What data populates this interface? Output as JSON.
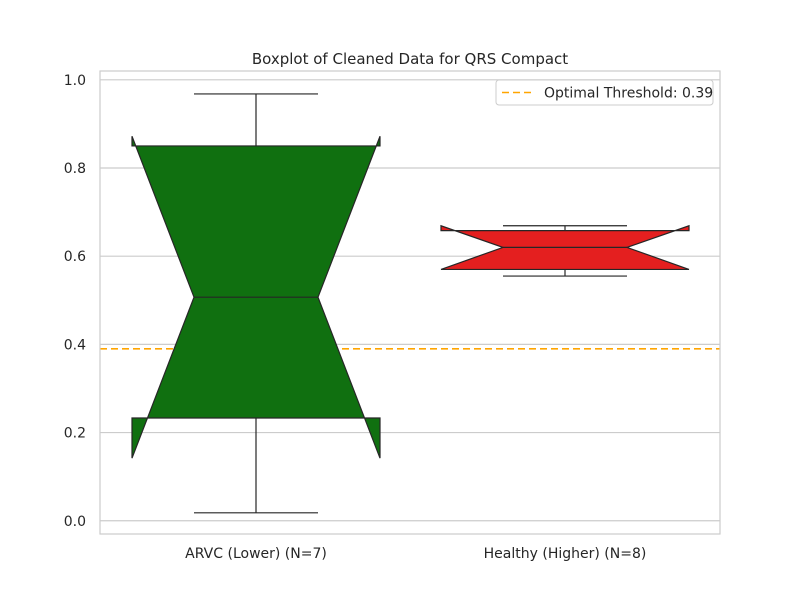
{
  "chart_data": {
    "type": "boxplot",
    "title": "Boxplot of Cleaned Data for QRS Compact",
    "xlabel": "",
    "ylabel": "",
    "ylim": [
      -0.03,
      1.02
    ],
    "yticks": [
      0.0,
      0.2,
      0.4,
      0.6,
      0.8,
      1.0
    ],
    "ytick_labels": [
      "0.0",
      "0.2",
      "0.4",
      "0.6",
      "0.8",
      "1.0"
    ],
    "grid": true,
    "notched": true,
    "categories": [
      "ARVC (Lower) (N=7)",
      "Healthy (Higher) (N=8)"
    ],
    "boxes": [
      {
        "name": "ARVC (Lower) (N=7)",
        "color": "#107010",
        "whisker_low": 0.018,
        "q1": 0.233,
        "median": 0.507,
        "q3": 0.85,
        "whisker_high": 0.968,
        "notch_low": 0.142,
        "notch_high": 0.872
      },
      {
        "name": "Healthy (Higher) (N=8)",
        "color": "#e41f1f",
        "whisker_low": 0.555,
        "q1": 0.57,
        "median": 0.62,
        "q3": 0.658,
        "whisker_high": 0.669,
        "notch_low": 0.57,
        "notch_high": 0.669
      }
    ],
    "threshold": {
      "value": 0.39,
      "color": "#ffa500",
      "label": "Optimal Threshold: 0.39"
    },
    "legend": {
      "position": "top-right"
    }
  }
}
